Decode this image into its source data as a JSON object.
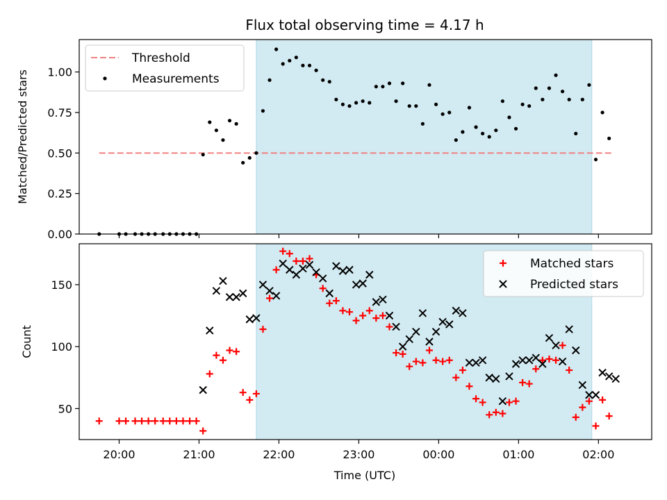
{
  "title": "Flux total observing time = 4.17 h",
  "colors": {
    "span": "#add8e6",
    "threshold": "#f08080",
    "measurement": "#000000",
    "matched": "#ff0000",
    "predicted": "#000000"
  },
  "x_axis": {
    "label": "Time (UTC)",
    "ticks": [
      "20:00",
      "21:00",
      "22:00",
      "23:00",
      "00:00",
      "01:00",
      "02:00"
    ]
  },
  "chart_data": [
    {
      "type": "scatter",
      "title": "Flux total observing time = 4.17 h",
      "ylabel": "Matched/Predicted stars",
      "xlim": [
        "19:30",
        "02:40"
      ],
      "ylim": [
        0.0,
        1.2
      ],
      "yticks": [
        "0.00",
        "0.25",
        "0.50",
        "0.75",
        "1.00"
      ],
      "shaded_span": [
        "21:43",
        "01:55"
      ],
      "threshold": {
        "name": "Threshold",
        "value": 0.5,
        "from": "19:45",
        "to": "02:10",
        "style": "dashed"
      },
      "legend": {
        "position": "top-left",
        "entries": [
          "Threshold",
          "Measurements"
        ]
      },
      "series": [
        {
          "name": "Measurements",
          "marker": "dot",
          "points": [
            [
              "19:45",
              0.0
            ],
            [
              "20:00",
              0.0
            ],
            [
              "20:05",
              0.0
            ],
            [
              "20:12",
              0.0
            ],
            [
              "20:17",
              0.0
            ],
            [
              "20:22",
              0.0
            ],
            [
              "20:27",
              0.0
            ],
            [
              "20:33",
              0.0
            ],
            [
              "20:38",
              0.0
            ],
            [
              "20:43",
              0.0
            ],
            [
              "20:48",
              0.0
            ],
            [
              "20:53",
              0.0
            ],
            [
              "20:58",
              0.0
            ],
            [
              "21:03",
              0.49
            ],
            [
              "21:08",
              0.69
            ],
            [
              "21:13",
              0.64
            ],
            [
              "21:18",
              0.58
            ],
            [
              "21:23",
              0.7
            ],
            [
              "21:28",
              0.68
            ],
            [
              "21:33",
              0.44
            ],
            [
              "21:38",
              0.47
            ],
            [
              "21:43",
              0.5
            ],
            [
              "21:48",
              0.76
            ],
            [
              "21:53",
              0.95
            ],
            [
              "21:58",
              1.14
            ],
            [
              "22:03",
              1.05
            ],
            [
              "22:08",
              1.07
            ],
            [
              "22:13",
              1.09
            ],
            [
              "22:18",
              1.04
            ],
            [
              "22:23",
              1.04
            ],
            [
              "22:28",
              1.01
            ],
            [
              "22:33",
              0.95
            ],
            [
              "22:38",
              0.94
            ],
            [
              "22:43",
              0.83
            ],
            [
              "22:48",
              0.8
            ],
            [
              "22:53",
              0.79
            ],
            [
              "22:58",
              0.81
            ],
            [
              "23:03",
              0.82
            ],
            [
              "23:08",
              0.81
            ],
            [
              "23:13",
              0.91
            ],
            [
              "23:18",
              0.91
            ],
            [
              "23:23",
              0.93
            ],
            [
              "23:28",
              0.82
            ],
            [
              "23:33",
              0.93
            ],
            [
              "23:38",
              0.79
            ],
            [
              "23:43",
              0.79
            ],
            [
              "23:48",
              0.68
            ],
            [
              "23:53",
              0.92
            ],
            [
              "23:58",
              0.8
            ],
            [
              "00:03",
              0.74
            ],
            [
              "00:08",
              0.75
            ],
            [
              "00:13",
              0.58
            ],
            [
              "00:18",
              0.63
            ],
            [
              "00:23",
              0.78
            ],
            [
              "00:28",
              0.66
            ],
            [
              "00:33",
              0.62
            ],
            [
              "00:38",
              0.6
            ],
            [
              "00:43",
              0.64
            ],
            [
              "00:48",
              0.82
            ],
            [
              "00:53",
              0.72
            ],
            [
              "00:58",
              0.65
            ],
            [
              "01:03",
              0.8
            ],
            [
              "01:08",
              0.79
            ],
            [
              "01:13",
              0.9
            ],
            [
              "01:18",
              0.83
            ],
            [
              "01:23",
              0.9
            ],
            [
              "01:28",
              0.98
            ],
            [
              "01:33",
              0.88
            ],
            [
              "01:38",
              0.83
            ],
            [
              "01:43",
              0.62
            ],
            [
              "01:48",
              0.83
            ],
            [
              "01:53",
              0.92
            ],
            [
              "01:58",
              0.46
            ],
            [
              "02:03",
              0.75
            ],
            [
              "02:08",
              0.59
            ]
          ]
        }
      ]
    },
    {
      "type": "scatter",
      "title": "",
      "xlabel": "Time (UTC)",
      "ylabel": "Count",
      "xlim": [
        "19:30",
        "02:40"
      ],
      "ylim": [
        25,
        183
      ],
      "yticks": [
        "50",
        "100",
        "150"
      ],
      "shaded_span": [
        "21:43",
        "01:55"
      ],
      "legend": {
        "position": "top-right",
        "entries": [
          "Matched stars",
          "Predicted stars"
        ]
      },
      "series": [
        {
          "name": "Matched stars",
          "marker": "plus",
          "points": [
            [
              "19:45",
              40
            ],
            [
              "20:00",
              40
            ],
            [
              "20:05",
              40
            ],
            [
              "20:12",
              40
            ],
            [
              "20:17",
              40
            ],
            [
              "20:22",
              40
            ],
            [
              "20:27",
              40
            ],
            [
              "20:33",
              40
            ],
            [
              "20:38",
              40
            ],
            [
              "20:43",
              40
            ],
            [
              "20:48",
              40
            ],
            [
              "20:53",
              40
            ],
            [
              "20:58",
              40
            ],
            [
              "21:03",
              32
            ],
            [
              "21:08",
              78
            ],
            [
              "21:13",
              93
            ],
            [
              "21:18",
              89
            ],
            [
              "21:23",
              97
            ],
            [
              "21:28",
              96
            ],
            [
              "21:33",
              63
            ],
            [
              "21:38",
              57
            ],
            [
              "21:43",
              62
            ],
            [
              "21:48",
              114
            ],
            [
              "21:53",
              139
            ],
            [
              "21:58",
              162
            ],
            [
              "22:03",
              177
            ],
            [
              "22:08",
              175
            ],
            [
              "22:13",
              169
            ],
            [
              "22:18",
              169
            ],
            [
              "22:23",
              171
            ],
            [
              "22:28",
              158
            ],
            [
              "22:33",
              147
            ],
            [
              "22:38",
              135
            ],
            [
              "22:43",
              137
            ],
            [
              "22:48",
              129
            ],
            [
              "22:53",
              128
            ],
            [
              "22:58",
              121
            ],
            [
              "23:03",
              125
            ],
            [
              "23:08",
              129
            ],
            [
              "23:13",
              123
            ],
            [
              "23:18",
              125
            ],
            [
              "23:23",
              116
            ],
            [
              "23:28",
              95
            ],
            [
              "23:33",
              94
            ],
            [
              "23:38",
              84
            ],
            [
              "23:43",
              88
            ],
            [
              "23:48",
              87
            ],
            [
              "23:53",
              97
            ],
            [
              "23:58",
              89
            ],
            [
              "00:03",
              88
            ],
            [
              "00:08",
              89
            ],
            [
              "00:13",
              75
            ],
            [
              "00:18",
              81
            ],
            [
              "00:23",
              68
            ],
            [
              "00:28",
              58
            ],
            [
              "00:33",
              55
            ],
            [
              "00:38",
              45
            ],
            [
              "00:43",
              47
            ],
            [
              "00:48",
              46
            ],
            [
              "00:53",
              55
            ],
            [
              "00:58",
              56
            ],
            [
              "01:03",
              71
            ],
            [
              "01:08",
              70
            ],
            [
              "01:13",
              82
            ],
            [
              "01:18",
              89
            ],
            [
              "01:23",
              90
            ],
            [
              "01:28",
              89
            ],
            [
              "01:33",
              101
            ],
            [
              "01:38",
              81
            ],
            [
              "01:43",
              43
            ],
            [
              "01:48",
              51
            ],
            [
              "01:53",
              56
            ],
            [
              "01:58",
              36
            ],
            [
              "02:03",
              57
            ],
            [
              "02:08",
              44
            ]
          ]
        },
        {
          "name": "Predicted stars",
          "marker": "x",
          "points": [
            [
              "21:03",
              65
            ],
            [
              "21:08",
              113
            ],
            [
              "21:13",
              145
            ],
            [
              "21:18",
              153
            ],
            [
              "21:23",
              140
            ],
            [
              "21:28",
              140
            ],
            [
              "21:33",
              143
            ],
            [
              "21:38",
              122
            ],
            [
              "21:43",
              123
            ],
            [
              "21:48",
              150
            ],
            [
              "21:53",
              145
            ],
            [
              "21:58",
              141
            ],
            [
              "22:03",
              167
            ],
            [
              "22:08",
              162
            ],
            [
              "22:13",
              158
            ],
            [
              "22:18",
              163
            ],
            [
              "22:23",
              166
            ],
            [
              "22:28",
              160
            ],
            [
              "22:33",
              155
            ],
            [
              "22:38",
              143
            ],
            [
              "22:43",
              165
            ],
            [
              "22:48",
              161
            ],
            [
              "22:53",
              162
            ],
            [
              "22:58",
              150
            ],
            [
              "23:03",
              151
            ],
            [
              "23:08",
              158
            ],
            [
              "23:13",
              136
            ],
            [
              "23:18",
              138
            ],
            [
              "23:23",
              125
            ],
            [
              "23:28",
              116
            ],
            [
              "23:33",
              100
            ],
            [
              "23:38",
              106
            ],
            [
              "23:43",
              112
            ],
            [
              "23:48",
              127
            ],
            [
              "23:53",
              104
            ],
            [
              "23:58",
              112
            ],
            [
              "00:03",
              120
            ],
            [
              "00:08",
              118
            ],
            [
              "00:13",
              129
            ],
            [
              "00:18",
              127
            ],
            [
              "00:23",
              87
            ],
            [
              "00:28",
              87
            ],
            [
              "00:33",
              89
            ],
            [
              "00:38",
              75
            ],
            [
              "00:43",
              74
            ],
            [
              "00:48",
              56
            ],
            [
              "00:53",
              76
            ],
            [
              "00:58",
              86
            ],
            [
              "01:03",
              89
            ],
            [
              "01:08",
              89
            ],
            [
              "01:13",
              91
            ],
            [
              "01:18",
              86
            ],
            [
              "01:23",
              107
            ],
            [
              "01:28",
              101
            ],
            [
              "01:33",
              88
            ],
            [
              "01:38",
              114
            ],
            [
              "01:43",
              97
            ],
            [
              "01:48",
              69
            ],
            [
              "01:53",
              61
            ],
            [
              "01:58",
              61
            ],
            [
              "02:03",
              79
            ],
            [
              "02:08",
              76
            ],
            [
              "02:13",
              74
            ]
          ]
        }
      ]
    }
  ]
}
